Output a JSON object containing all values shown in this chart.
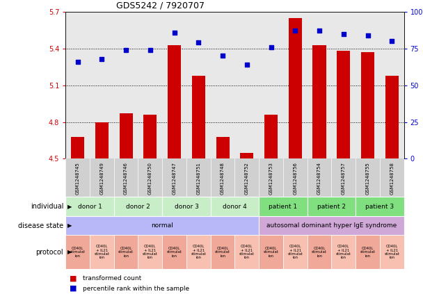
{
  "title": "GDS5242 / 7920707",
  "samples": [
    "GSM1248745",
    "GSM1248749",
    "GSM1248746",
    "GSM1248750",
    "GSM1248747",
    "GSM1248751",
    "GSM1248748",
    "GSM1248752",
    "GSM1248753",
    "GSM1248756",
    "GSM1248754",
    "GSM1248757",
    "GSM1248755",
    "GSM1248758"
  ],
  "bar_values": [
    4.68,
    4.8,
    4.87,
    4.86,
    5.43,
    5.18,
    4.68,
    4.55,
    4.86,
    5.65,
    5.43,
    5.38,
    5.37,
    5.18
  ],
  "dot_values": [
    66,
    68,
    74,
    74,
    86,
    79,
    70,
    64,
    76,
    87,
    87,
    85,
    84,
    80
  ],
  "bar_bottom": 4.5,
  "ylim_left": [
    4.5,
    5.7
  ],
  "ylim_right": [
    0,
    100
  ],
  "yticks_left": [
    4.5,
    4.8,
    5.1,
    5.4,
    5.7
  ],
  "yticks_right": [
    0,
    25,
    50,
    75,
    100
  ],
  "ytick_labels_right": [
    "0",
    "25",
    "50",
    "75",
    "100%"
  ],
  "bar_color": "#cc0000",
  "dot_color": "#0000cc",
  "plot_bg_color": "#e8e8e8",
  "individual_groups": [
    {
      "label": "donor 1",
      "start": 0,
      "end": 2,
      "color": "#c8eec8"
    },
    {
      "label": "donor 2",
      "start": 2,
      "end": 4,
      "color": "#c8eec8"
    },
    {
      "label": "donor 3",
      "start": 4,
      "end": 6,
      "color": "#c8eec8"
    },
    {
      "label": "donor 4",
      "start": 6,
      "end": 8,
      "color": "#c8eec8"
    },
    {
      "label": "patient 1",
      "start": 8,
      "end": 10,
      "color": "#80e080"
    },
    {
      "label": "patient 2",
      "start": 10,
      "end": 12,
      "color": "#80e080"
    },
    {
      "label": "patient 3",
      "start": 12,
      "end": 14,
      "color": "#80e080"
    }
  ],
  "disease_groups": [
    {
      "label": "normal",
      "start": 0,
      "end": 8,
      "color": "#b8b8f8"
    },
    {
      "label": "autosomal dominant hyper IgE syndrome",
      "start": 8,
      "end": 14,
      "color": "#d0a8d8"
    }
  ],
  "protocol_labels": [
    "CD40L\nstimulat\nion",
    "CD40L\n+ IL21\nstimulat\nion",
    "CD40L\nstimulat\nion",
    "CD40L\n+ IL21\nstimulat\nion",
    "CD40L\nstimulat\nion",
    "CD40L\n+ IL21\nstimulat\nion",
    "CD40L\nstimulat\nion",
    "CD40L\n+ IL21\nstimulat\nion",
    "CD40L\nstimulat\nion",
    "CD40L\n+ IL21\nstimulat\nion",
    "CD40L\nstimulat\nion",
    "CD40L\n+ IL21\nstimulat\nion",
    "CD40L\nstimulat\nion",
    "CD40L\n+ IL21\nstimulat\nion"
  ],
  "protocol_col_odd": "#f0a898",
  "protocol_col_even": "#f8c0b0",
  "legend_bar_label": "transformed count",
  "legend_dot_label": "percentile rank within the sample",
  "row_labels": [
    "individual",
    "disease state",
    "protocol"
  ],
  "sample_bg_color": "#d0d0d0",
  "left_label_color": "#000000"
}
